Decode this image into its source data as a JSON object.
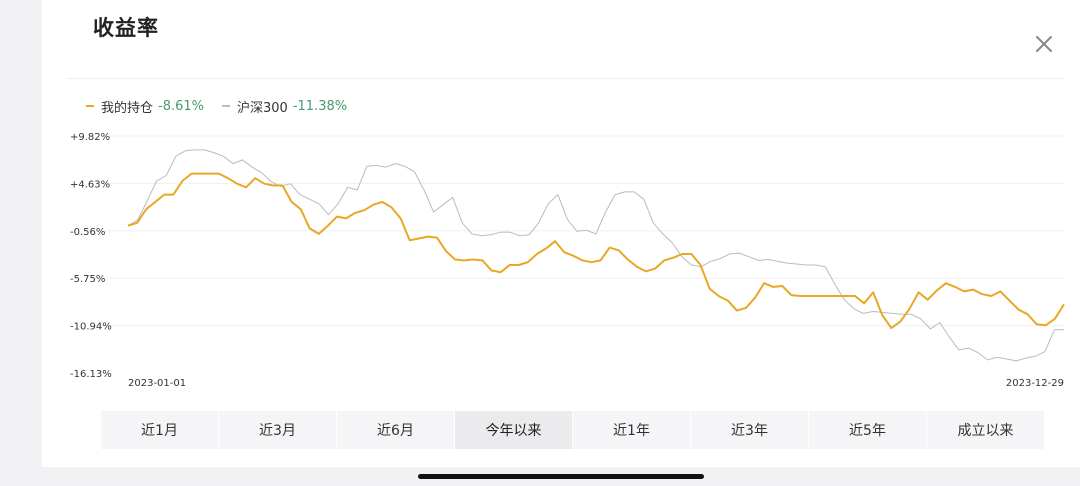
{
  "header": {
    "title": "收益率"
  },
  "legend": [
    {
      "name": "我的持仓",
      "value": "-8.61%",
      "color": "#e8a825"
    },
    {
      "name": "沪深300",
      "value": "-11.38%",
      "color": "#bbbbbb"
    }
  ],
  "tabs": [
    "近1月",
    "近3月",
    "近6月",
    "今年以来",
    "近1年",
    "近3年",
    "近5年",
    "成立以来"
  ],
  "active_tab": 3,
  "colors": {
    "gain": "#4a9a6e",
    "portfolio": "#e8a825",
    "benchmark": "#bbbbbb"
  },
  "chart_data": {
    "type": "line",
    "x_start": "2023-01-01",
    "x_end": "2023-12-29",
    "yticks": [
      "+9.82%",
      "+4.63%",
      "-0.56%",
      "-5.75%",
      "-10.94%",
      "-16.13%"
    ],
    "ylim": [
      -16.13,
      9.82
    ],
    "grid": true,
    "legend_position": "top-left",
    "series": [
      {
        "name": "我的持仓",
        "final_value": "-8.61%",
        "values": [
          0.0,
          0.3,
          1.8,
          2.6,
          3.4,
          3.4,
          4.9,
          5.7,
          5.7,
          5.7,
          5.7,
          5.2,
          4.6,
          4.2,
          5.2,
          4.6,
          4.4,
          4.4,
          2.6,
          1.8,
          -0.3,
          -0.9,
          0.0,
          1.0,
          0.8,
          1.4,
          1.7,
          2.3,
          2.6,
          2.0,
          0.8,
          -1.6,
          -1.4,
          -1.2,
          -1.3,
          -2.8,
          -3.7,
          -3.8,
          -3.7,
          -3.8,
          -4.9,
          -5.1,
          -4.3,
          -4.3,
          -4.0,
          -3.1,
          -2.5,
          -1.7,
          -2.9,
          -3.3,
          -3.8,
          -4.0,
          -3.8,
          -2.4,
          -2.7,
          -3.7,
          -4.5,
          -5.0,
          -4.7,
          -3.8,
          -3.5,
          -3.1,
          -3.1,
          -4.3,
          -6.9,
          -7.7,
          -8.2,
          -9.3,
          -9.0,
          -7.9,
          -6.3,
          -6.7,
          -6.6,
          -7.6,
          -7.7,
          -7.7,
          -7.7,
          -7.7,
          -7.7,
          -7.7,
          -7.7,
          -8.5,
          -7.3,
          -9.8,
          -11.2,
          -10.5,
          -9.1,
          -7.3,
          -8.1,
          -7.1,
          -6.3,
          -6.7,
          -7.2,
          -7.0,
          -7.5,
          -7.7,
          -7.2,
          -8.2,
          -9.2,
          -9.7,
          -10.8,
          -10.9,
          -10.2,
          -8.61
        ]
      },
      {
        "name": "沪深300",
        "final_value": "-11.38%",
        "values": [
          0.0,
          0.6,
          2.7,
          4.9,
          5.5,
          7.6,
          8.2,
          8.3,
          8.3,
          8.0,
          7.6,
          6.8,
          7.2,
          6.4,
          5.8,
          4.8,
          4.3,
          4.6,
          3.4,
          2.9,
          2.4,
          1.2,
          2.4,
          4.2,
          3.9,
          6.5,
          6.6,
          6.4,
          6.8,
          6.5,
          5.9,
          3.9,
          1.5,
          2.3,
          3.1,
          0.3,
          -0.9,
          -1.1,
          -1.0,
          -0.7,
          -0.7,
          -1.1,
          -1.0,
          0.3,
          2.4,
          3.4,
          0.7,
          -0.6,
          -0.5,
          -0.9,
          1.5,
          3.4,
          3.7,
          3.7,
          2.9,
          0.3,
          -0.9,
          -1.9,
          -3.4,
          -4.3,
          -4.5,
          -3.9,
          -3.6,
          -3.1,
          -3.0,
          -3.4,
          -3.8,
          -3.7,
          -3.9,
          -4.1,
          -4.2,
          -4.3,
          -4.3,
          -4.5,
          -6.4,
          -8.1,
          -9.1,
          -9.6,
          -9.4,
          -9.5,
          -9.6,
          -9.7,
          -9.7,
          -10.2,
          -11.3,
          -10.6,
          -12.2,
          -13.6,
          -13.4,
          -13.9,
          -14.7,
          -14.4,
          -14.6,
          -14.8,
          -14.5,
          -14.3,
          -13.8,
          -11.4,
          -11.38
        ]
      }
    ]
  }
}
